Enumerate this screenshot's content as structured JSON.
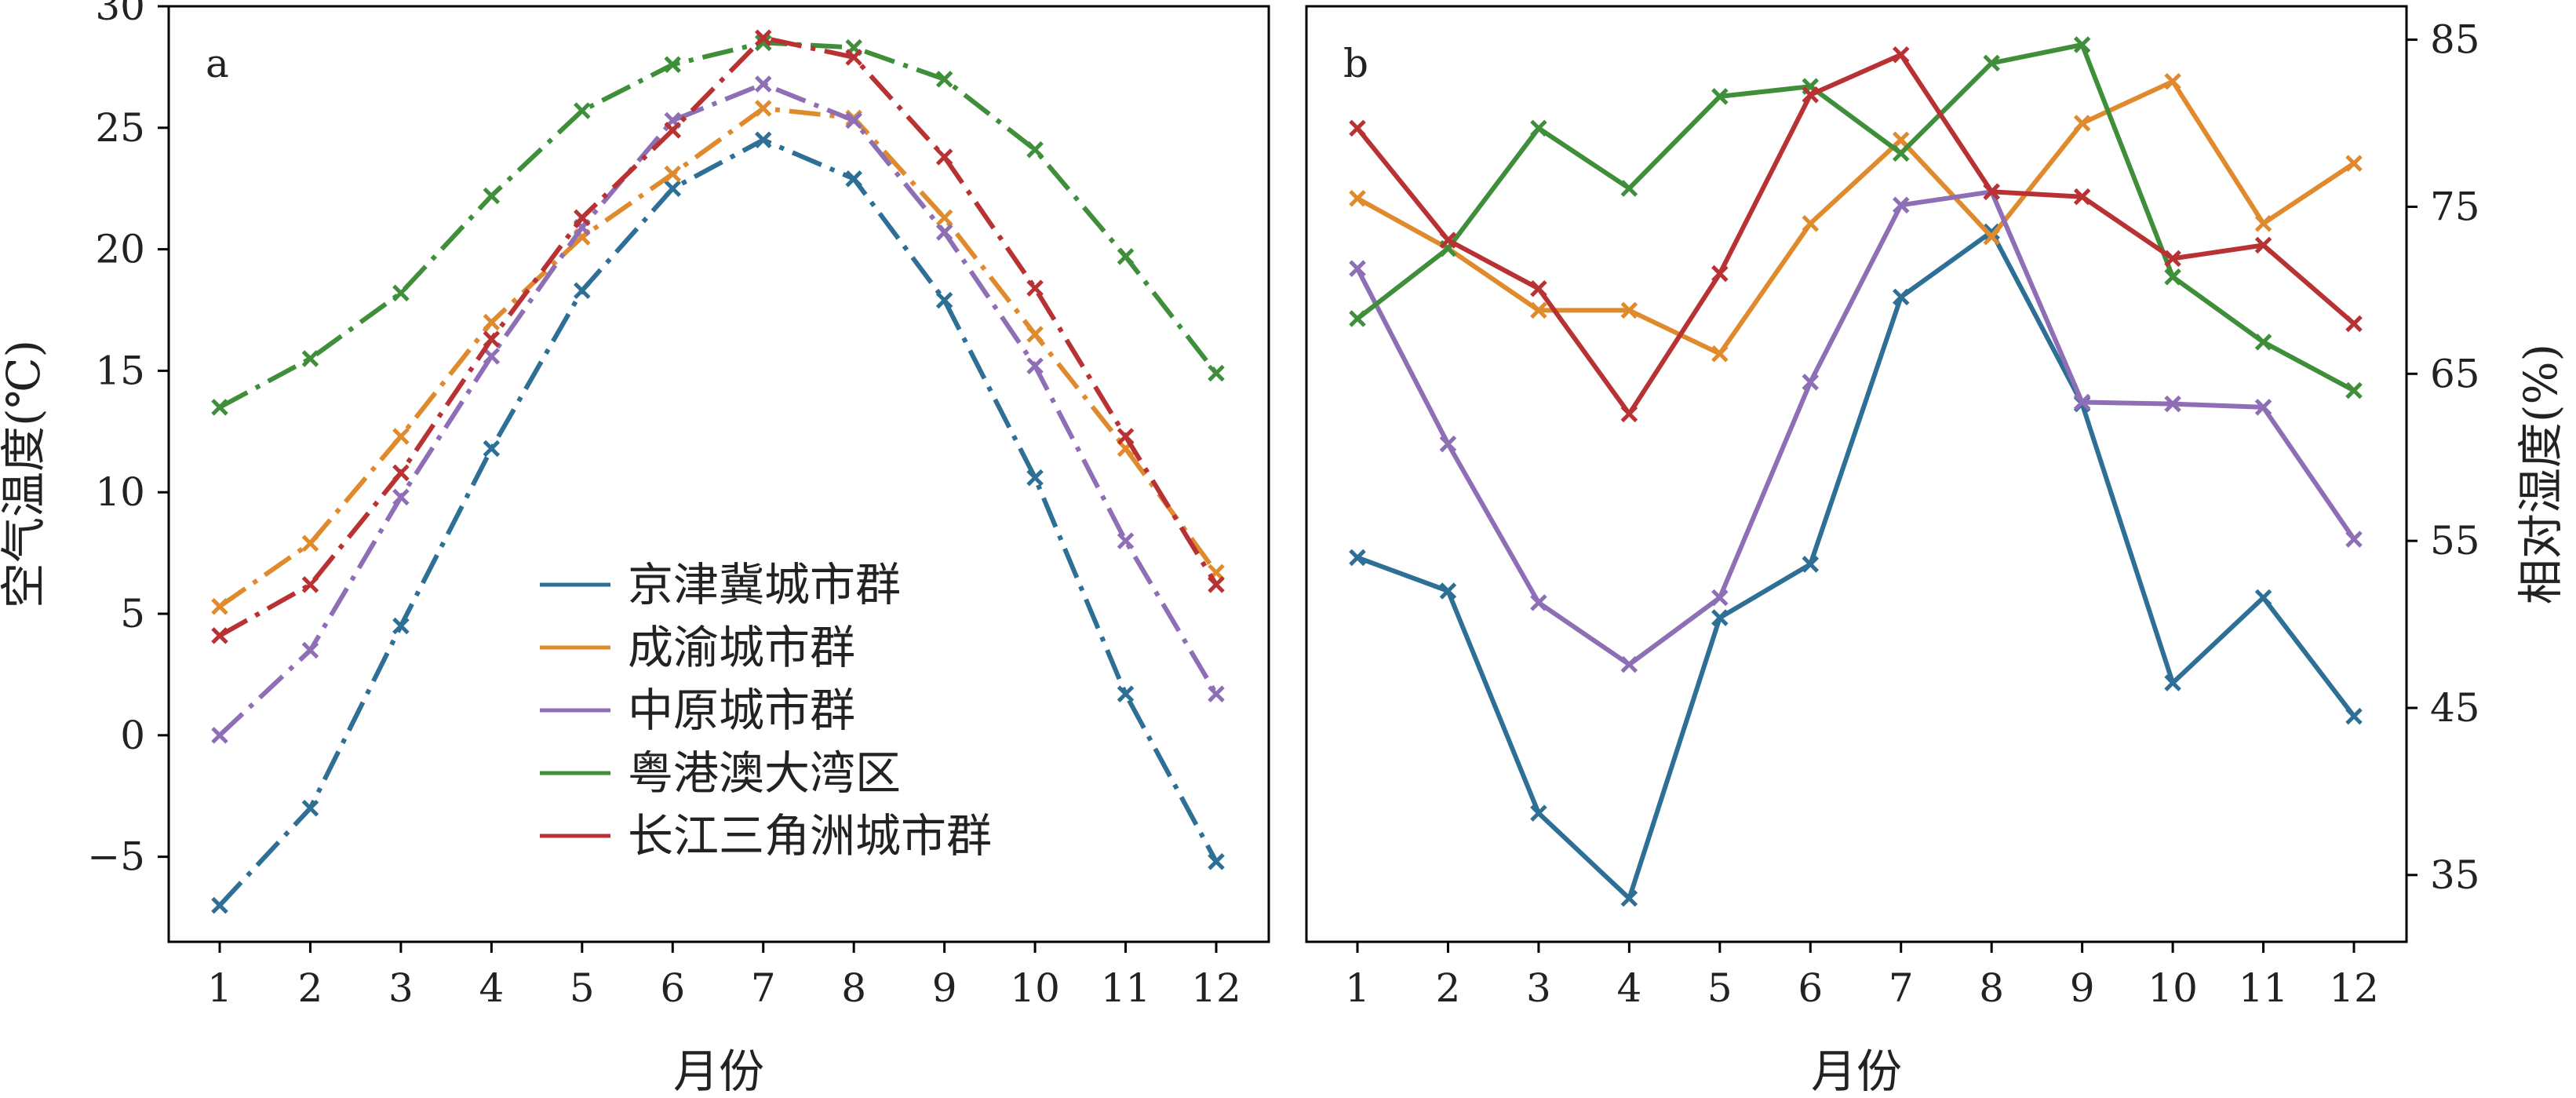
{
  "colors": {
    "京津冀城市群": "#2e6f96",
    "成渝城市群": "#e08a2e",
    "中原城市群": "#8e6fb5",
    "粤港澳大湾区": "#3f8e3a",
    "长江三角洲城市群": "#b83234"
  },
  "legend": [
    "京津冀城市群",
    "成渝城市群",
    "中原城市群",
    "粤港澳大湾区",
    "长江三角洲城市群"
  ],
  "chart_data": [
    {
      "panel": "a",
      "type": "line",
      "line_style": "dash-dot",
      "marker": "x",
      "xlabel": "月份",
      "ylabel": "空气温度(℃)",
      "x": [
        1,
        2,
        3,
        4,
        5,
        6,
        7,
        8,
        9,
        10,
        11,
        12
      ],
      "xticks": [
        "1",
        "2",
        "3",
        "4",
        "5",
        "6",
        "7",
        "8",
        "9",
        "10",
        "11",
        "12"
      ],
      "ylim": [
        -8.5,
        30
      ],
      "yticks": [
        "−5",
        "0",
        "5",
        "10",
        "15",
        "20",
        "25",
        "30"
      ],
      "ytick_values": [
        -5,
        0,
        5,
        10,
        15,
        20,
        25,
        30
      ],
      "legend_position": "lower-center",
      "series": [
        {
          "name": "京津冀城市群",
          "values": [
            -7.0,
            -3.0,
            4.5,
            11.8,
            18.3,
            22.5,
            24.5,
            22.9,
            17.9,
            10.6,
            1.7,
            -5.2
          ]
        },
        {
          "name": "成渝城市群",
          "values": [
            5.3,
            7.9,
            12.3,
            17.0,
            20.5,
            23.1,
            25.8,
            25.4,
            21.3,
            16.5,
            11.8,
            6.7
          ]
        },
        {
          "name": "中原城市群",
          "values": [
            0.0,
            3.5,
            9.8,
            15.6,
            20.9,
            25.3,
            26.8,
            25.3,
            20.7,
            15.2,
            8.0,
            1.7
          ]
        },
        {
          "name": "粤港澳大湾区",
          "values": [
            13.5,
            15.5,
            18.2,
            22.2,
            25.7,
            27.6,
            28.5,
            28.3,
            27.0,
            24.1,
            19.7,
            14.9
          ]
        },
        {
          "name": "长江三角洲城市群",
          "values": [
            4.1,
            6.2,
            10.8,
            16.3,
            21.3,
            24.9,
            28.7,
            27.9,
            23.8,
            18.4,
            12.3,
            6.2
          ]
        }
      ]
    },
    {
      "panel": "b",
      "type": "line",
      "line_style": "solid",
      "marker": "x",
      "xlabel": "月份",
      "ylabel": "相对湿度(%)",
      "y_axis_side": "right",
      "x": [
        1,
        2,
        3,
        4,
        5,
        6,
        7,
        8,
        9,
        10,
        11,
        12
      ],
      "xticks": [
        "1",
        "2",
        "3",
        "4",
        "5",
        "6",
        "7",
        "8",
        "9",
        "10",
        "11",
        "12"
      ],
      "ylim": [
        31,
        87
      ],
      "yticks": [
        "35",
        "45",
        "55",
        "65",
        "75",
        "85"
      ],
      "ytick_values": [
        35,
        45,
        55,
        65,
        75,
        85
      ],
      "series": [
        {
          "name": "京津冀城市群",
          "values": [
            54.0,
            52.0,
            38.7,
            33.6,
            50.4,
            53.6,
            69.6,
            73.5,
            63.2,
            46.5,
            51.6,
            44.5
          ]
        },
        {
          "name": "成渝城市群",
          "values": [
            75.5,
            72.5,
            68.8,
            68.8,
            66.2,
            74.0,
            79.0,
            73.2,
            80.0,
            82.5,
            74.0,
            77.6
          ]
        },
        {
          "name": "中原城市群",
          "values": [
            71.3,
            60.8,
            51.3,
            47.6,
            51.6,
            64.5,
            75.1,
            75.9,
            63.3,
            63.2,
            63.0,
            55.1
          ]
        },
        {
          "name": "粤港澳大湾区",
          "values": [
            68.3,
            72.5,
            79.7,
            76.1,
            81.6,
            82.2,
            78.2,
            83.6,
            84.7,
            70.8,
            66.9,
            64.0
          ]
        },
        {
          "name": "长江三角洲城市群",
          "values": [
            79.7,
            73.0,
            70.1,
            62.6,
            71.0,
            81.7,
            84.1,
            75.9,
            75.6,
            71.9,
            72.7,
            68.0
          ]
        }
      ]
    }
  ]
}
